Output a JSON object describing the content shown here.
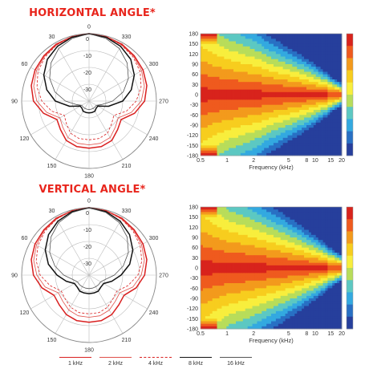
{
  "titles": {
    "horizontal": "HORIZONTAL ANGLE*",
    "vertical": "VERTICAL ANGLE*"
  },
  "legend": [
    {
      "label": "1 kHz",
      "color": "#d92020",
      "style": "solid",
      "width": 1.5
    },
    {
      "label": "2 kHz",
      "color": "#e0504a",
      "style": "solid",
      "width": 0.8
    },
    {
      "label": "4 kHz",
      "color": "#d92020",
      "style": "dashed",
      "width": 0.8
    },
    {
      "label": "8 kHz",
      "color": "#111111",
      "style": "solid",
      "width": 1.5
    },
    {
      "label": "16 kHz",
      "color": "#555555",
      "style": "solid",
      "width": 0.8
    }
  ],
  "chart_data": [
    {
      "type": "polar",
      "name": "horizontal-polar",
      "angle_labels": [
        "0",
        "30",
        "60",
        "90",
        "120",
        "150",
        "180",
        "210",
        "240",
        "270",
        "300",
        "330"
      ],
      "radial_labels": [
        "0",
        "-10",
        "-20",
        "-30"
      ],
      "rlim": [
        -40,
        0
      ],
      "series": [
        {
          "name": "1 kHz",
          "angles": [
            0,
            15,
            30,
            45,
            60,
            75,
            90,
            105,
            120,
            135,
            150,
            165,
            180
          ],
          "values": [
            0,
            -0.5,
            -1,
            -2,
            -3,
            -4.5,
            -7,
            -12,
            -18,
            -16,
            -13,
            -12,
            -12
          ]
        },
        {
          "name": "2 kHz",
          "angles": [
            0,
            15,
            30,
            45,
            60,
            75,
            90,
            105,
            120,
            135,
            150,
            165,
            180
          ],
          "values": [
            0,
            -0.5,
            -1.5,
            -2.5,
            -4,
            -6,
            -9,
            -14,
            -20,
            -18,
            -15,
            -14,
            -14
          ]
        },
        {
          "name": "4 kHz",
          "angles": [
            0,
            15,
            30,
            45,
            60,
            75,
            90,
            105,
            120,
            135,
            150,
            165,
            180
          ],
          "values": [
            0,
            -0.5,
            -1.5,
            -3,
            -5,
            -8,
            -12,
            -17,
            -23,
            -21,
            -18,
            -17,
            -17
          ]
        },
        {
          "name": "8 kHz",
          "angles": [
            0,
            15,
            30,
            45,
            60,
            75,
            90,
            105,
            120,
            135,
            150,
            165,
            180
          ],
          "values": [
            0,
            -0.8,
            -2.5,
            -5,
            -9,
            -14,
            -20,
            -28,
            -34,
            -34,
            -33,
            -33,
            -33
          ]
        },
        {
          "name": "16 kHz",
          "angles": [
            0,
            15,
            30,
            45,
            60,
            75,
            90,
            105,
            120,
            135,
            150,
            165,
            180
          ],
          "values": [
            0,
            -1.5,
            -4,
            -8,
            -13,
            -19,
            -26,
            -32,
            -35,
            -35,
            -35,
            -35,
            -35
          ]
        }
      ]
    },
    {
      "type": "heatmap",
      "name": "horizontal-directivity",
      "xlabel": "Frequency (kHz)",
      "x_ticks": [
        "0.5",
        "1",
        "2",
        "5",
        "8",
        "10",
        "15",
        "20"
      ],
      "x_values": [
        0.5,
        1,
        2,
        5,
        8,
        10,
        15,
        20
      ],
      "y_ticks": [
        "180",
        "150",
        "120",
        "90",
        "60",
        "30",
        "0",
        "-30",
        "-60",
        "-90",
        "-120",
        "-150",
        "-180"
      ],
      "ylim": [
        -180,
        180
      ],
      "beamwidth_profile": [
        [
          0.5,
          130
        ],
        [
          0.7,
          110
        ],
        [
          1,
          95
        ],
        [
          2,
          78
        ],
        [
          3,
          65
        ],
        [
          5,
          52
        ],
        [
          8,
          40
        ],
        [
          12,
          28
        ],
        [
          16,
          18
        ],
        [
          20,
          12
        ]
      ],
      "rear_lobe": true
    },
    {
      "type": "polar",
      "name": "vertical-polar",
      "angle_labels": [
        "0",
        "30",
        "60",
        "90",
        "120",
        "150",
        "180",
        "210",
        "240",
        "270",
        "300",
        "330"
      ],
      "radial_labels": [
        "0",
        "-10",
        "-20",
        "-30"
      ],
      "rlim": [
        -40,
        0
      ],
      "series": [
        {
          "name": "1 kHz",
          "angles": [
            0,
            15,
            30,
            45,
            60,
            75,
            90,
            105,
            120,
            135,
            150,
            165,
            180
          ],
          "values": [
            0,
            -0.5,
            -1,
            -2,
            -3,
            -4.5,
            -7,
            -11,
            -16,
            -15,
            -13,
            -12,
            -12
          ]
        },
        {
          "name": "2 kHz",
          "angles": [
            0,
            15,
            30,
            45,
            60,
            75,
            90,
            105,
            120,
            135,
            150,
            165,
            180
          ],
          "values": [
            0,
            -0.5,
            -1.5,
            -2.5,
            -4,
            -6,
            -9,
            -13,
            -19,
            -18,
            -16,
            -15,
            -15
          ]
        },
        {
          "name": "4 kHz",
          "angles": [
            0,
            15,
            30,
            45,
            60,
            75,
            90,
            105,
            120,
            135,
            150,
            165,
            180
          ],
          "values": [
            0,
            -0.5,
            -1.5,
            -3,
            -5,
            -7.5,
            -11,
            -16,
            -21,
            -20,
            -18,
            -17,
            -17
          ]
        },
        {
          "name": "8 kHz",
          "angles": [
            0,
            15,
            30,
            45,
            60,
            75,
            90,
            105,
            120,
            135,
            150,
            165,
            180
          ],
          "values": [
            0,
            -1,
            -3,
            -6,
            -10,
            -15,
            -21,
            -26,
            -30,
            -30,
            -29,
            -29,
            -29
          ]
        },
        {
          "name": "16 kHz",
          "angles": [
            0,
            15,
            30,
            45,
            60,
            75,
            90,
            105,
            120,
            135,
            150,
            165,
            180
          ],
          "values": [
            0,
            -1.5,
            -4,
            -8,
            -13,
            -19,
            -25,
            -30,
            -32,
            -32,
            -32,
            -32,
            -32
          ]
        }
      ]
    },
    {
      "type": "heatmap",
      "name": "vertical-directivity",
      "xlabel": "Frequency (kHz)",
      "x_ticks": [
        "0.5",
        "1",
        "2",
        "5",
        "8",
        "10",
        "15",
        "20"
      ],
      "x_values": [
        0.5,
        1,
        2,
        5,
        8,
        10,
        15,
        20
      ],
      "y_ticks": [
        "180",
        "150",
        "120",
        "90",
        "60",
        "30",
        "0",
        "-30",
        "-60",
        "-90",
        "-120",
        "-150",
        "-180"
      ],
      "ylim": [
        -180,
        180
      ],
      "beamwidth_profile": [
        [
          0.5,
          140
        ],
        [
          0.7,
          120
        ],
        [
          1,
          100
        ],
        [
          2,
          82
        ],
        [
          3,
          70
        ],
        [
          5,
          56
        ],
        [
          8,
          42
        ],
        [
          12,
          30
        ],
        [
          16,
          20
        ],
        [
          20,
          14
        ]
      ],
      "rear_lobe": true
    }
  ],
  "colorscale": [
    "#d8231c",
    "#ef5a1e",
    "#f39a1c",
    "#f7cd1e",
    "#f8ee3d",
    "#b8dd5a",
    "#5cc8c2",
    "#33a9e0",
    "#2870c4",
    "#263f9c"
  ]
}
